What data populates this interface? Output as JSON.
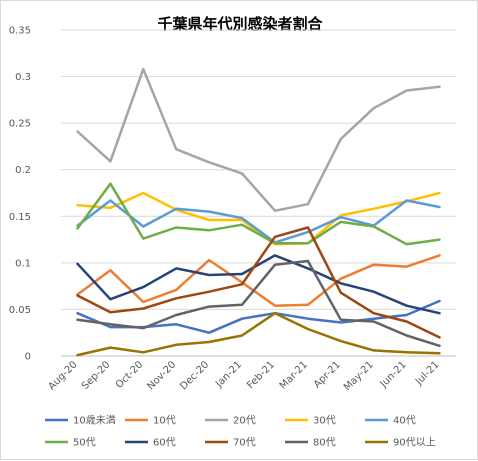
{
  "chart_data": {
    "type": "line",
    "title": "千葉県年代別感染者割合",
    "xlabel": "",
    "ylabel": "",
    "ylim": [
      0,
      0.35
    ],
    "yticks": [
      "0",
      "0.05",
      "0.1",
      "0.15",
      "0.2",
      "0.25",
      "0.3",
      "0.35"
    ],
    "grid": true,
    "legend_position": "bottom",
    "categories": [
      "Aug-20",
      "Sep-20",
      "Oct-20",
      "Nov-20",
      "Dec-20",
      "Jan-21",
      "Feb-21",
      "Mar-21",
      "Apr-21",
      "May-21",
      "Jun-21",
      "Jul-21"
    ],
    "series": [
      {
        "name": "10歳未満",
        "color": "#4472C4",
        "values": [
          0.046,
          0.031,
          0.031,
          0.034,
          0.025,
          0.04,
          0.046,
          0.04,
          0.036,
          0.04,
          0.044,
          0.059
        ]
      },
      {
        "name": "10代",
        "color": "#ED7D31",
        "values": [
          0.066,
          0.092,
          0.058,
          0.071,
          0.103,
          0.079,
          0.054,
          0.055,
          0.083,
          0.098,
          0.096,
          0.108
        ]
      },
      {
        "name": "20代",
        "color": "#A5A5A5",
        "values": [
          0.241,
          0.209,
          0.308,
          0.222,
          0.208,
          0.196,
          0.156,
          0.163,
          0.233,
          0.266,
          0.285,
          0.289
        ]
      },
      {
        "name": "30代",
        "color": "#FFC000",
        "values": [
          0.162,
          0.159,
          0.175,
          0.157,
          0.146,
          0.146,
          0.12,
          0.121,
          0.151,
          0.158,
          0.166,
          0.175
        ]
      },
      {
        "name": "40代",
        "color": "#5B9BD5",
        "values": [
          0.14,
          0.167,
          0.139,
          0.158,
          0.155,
          0.148,
          0.122,
          0.133,
          0.149,
          0.14,
          0.167,
          0.16
        ]
      },
      {
        "name": "50代",
        "color": "#70AD47",
        "values": [
          0.137,
          0.185,
          0.126,
          0.138,
          0.135,
          0.141,
          0.121,
          0.121,
          0.144,
          0.139,
          0.12,
          0.125
        ]
      },
      {
        "name": "60代",
        "color": "#264478",
        "values": [
          0.099,
          0.061,
          0.074,
          0.094,
          0.087,
          0.088,
          0.108,
          0.094,
          0.078,
          0.069,
          0.054,
          0.046
        ]
      },
      {
        "name": "70代",
        "color": "#9E480E",
        "values": [
          0.065,
          0.047,
          0.051,
          0.062,
          0.069,
          0.077,
          0.128,
          0.138,
          0.068,
          0.046,
          0.037,
          0.02
        ]
      },
      {
        "name": "80代",
        "color": "#636363",
        "values": [
          0.039,
          0.034,
          0.03,
          0.044,
          0.053,
          0.055,
          0.098,
          0.102,
          0.039,
          0.037,
          0.022,
          0.011
        ]
      },
      {
        "name": "90代以上",
        "color": "#997300",
        "values": [
          0.001,
          0.009,
          0.004,
          0.012,
          0.015,
          0.022,
          0.046,
          0.029,
          0.016,
          0.006,
          0.004,
          0.003
        ]
      }
    ]
  }
}
